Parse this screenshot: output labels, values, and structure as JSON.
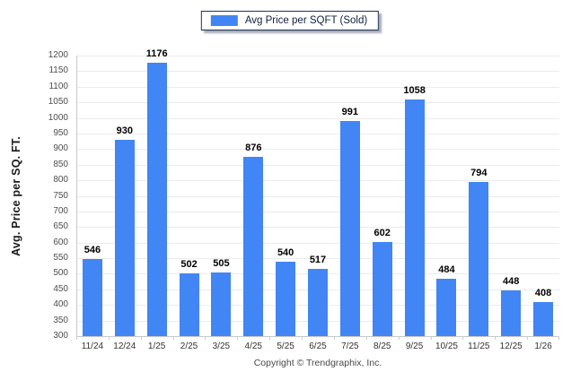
{
  "chart_data": {
    "type": "bar",
    "title": "",
    "legend": "Avg Price per SQFT (Sold)",
    "legend_position": "top-center",
    "ylabel": "Avg. Price per SQ. FT.",
    "xlabel": "",
    "copyright": "Copyright © Trendgraphix, Inc.",
    "categories": [
      "11/24",
      "12/24",
      "1/25",
      "2/25",
      "3/25",
      "4/25",
      "5/25",
      "6/25",
      "7/25",
      "8/25",
      "9/25",
      "10/25",
      "11/25",
      "12/25",
      "1/26"
    ],
    "values": [
      546,
      930,
      1176,
      502,
      505,
      876,
      540,
      517,
      991,
      602,
      1058,
      484,
      794,
      448,
      408
    ],
    "ylim": [
      300,
      1200
    ],
    "ytick_step": 50,
    "yticks": [
      300,
      350,
      400,
      450,
      500,
      550,
      600,
      650,
      700,
      750,
      800,
      850,
      900,
      950,
      1000,
      1050,
      1100,
      1150,
      1200
    ],
    "bar_color": "#4285F4",
    "grid": true
  }
}
